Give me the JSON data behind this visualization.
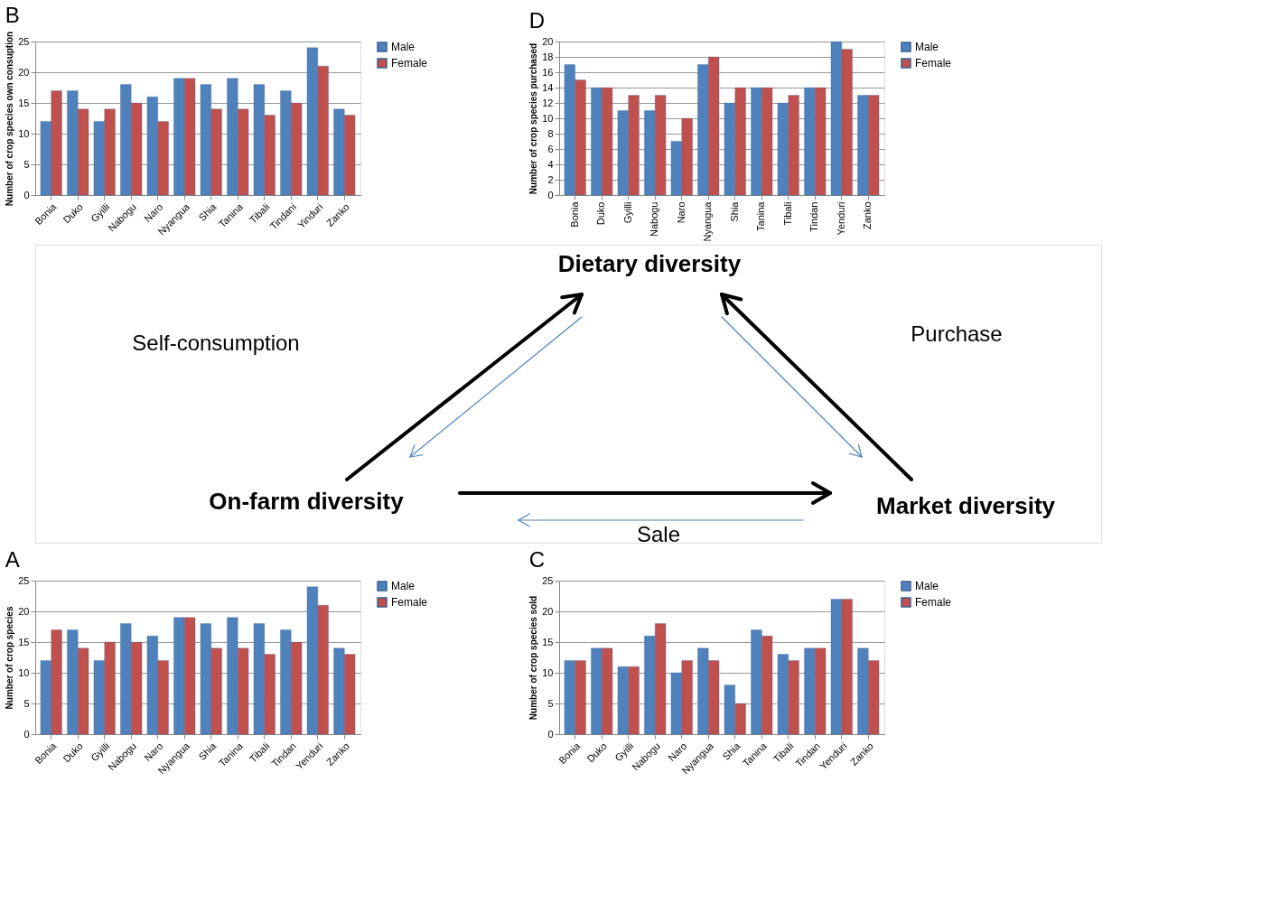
{
  "chart_data": [
    {
      "type": "bar",
      "title": "B",
      "ylabel": "Number of crop species own consuption",
      "categories": [
        "Bonia",
        "Duko",
        "Gyilli",
        "Nabogu",
        "Naro",
        "Nyangua",
        "Shia",
        "Tanina",
        "Tibali",
        "Tindani",
        "Yinduri",
        "Zanko"
      ],
      "series": [
        {
          "name": "Male",
          "color": "#4f81bd",
          "values": [
            12,
            17,
            12,
            18,
            16,
            19,
            18,
            19,
            18,
            17,
            24,
            14
          ]
        },
        {
          "name": "Female",
          "color": "#c0504d",
          "values": [
            17,
            14,
            14,
            15,
            12,
            19,
            14,
            14,
            13,
            15,
            21,
            13
          ]
        }
      ],
      "ylim": [
        0,
        25
      ],
      "yticks": [
        0,
        5,
        10,
        15,
        20,
        25
      ],
      "grid": "y",
      "legend": "right"
    },
    {
      "type": "bar",
      "title": "D",
      "ylabel": "Number of crop species purchased",
      "categories": [
        "Bonia",
        "Duko",
        "Gyilli",
        "Nabogu",
        "Naro",
        "Nyangua",
        "Shia",
        "Tanina",
        "Tibali",
        "Tindan",
        "Yenduri",
        "Zanko"
      ],
      "series": [
        {
          "name": "Male",
          "color": "#4f81bd",
          "values": [
            17,
            14,
            11,
            11,
            7,
            17,
            12,
            14,
            12,
            14,
            20,
            13
          ]
        },
        {
          "name": "Female",
          "color": "#c0504d",
          "values": [
            15,
            14,
            13,
            13,
            10,
            18,
            14,
            14,
            13,
            14,
            19,
            13
          ]
        }
      ],
      "ylim": [
        0,
        20
      ],
      "yticks": [
        0,
        2,
        4,
        6,
        8,
        10,
        12,
        14,
        16,
        18,
        20
      ],
      "grid": "y",
      "legend": "right"
    },
    {
      "type": "other",
      "annotations": [
        "Dietary diversity",
        "Self-consumption",
        "Purchase",
        "On-farm diversity",
        "Market diversity",
        "Sale"
      ]
    },
    {
      "type": "bar",
      "title": "A",
      "ylabel": "Number of crop species",
      "categories": [
        "Bonia",
        "Duko",
        "Gyilli",
        "Nabogu",
        "Naro",
        "Nyangua",
        "Shia",
        "Tanina",
        "Tibali",
        "Tindan",
        "Yenduri",
        "Zanko"
      ],
      "series": [
        {
          "name": "Male",
          "color": "#4f81bd",
          "values": [
            12,
            17,
            12,
            18,
            16,
            19,
            18,
            19,
            18,
            17,
            24,
            14
          ]
        },
        {
          "name": "Female",
          "color": "#c0504d",
          "values": [
            17,
            14,
            15,
            15,
            12,
            19,
            14,
            14,
            13,
            15,
            21,
            13
          ]
        }
      ],
      "ylim": [
        0,
        25
      ],
      "yticks": [
        0,
        5,
        10,
        15,
        20,
        25
      ],
      "grid": "y",
      "legend": "right"
    },
    {
      "type": "bar",
      "title": "C",
      "ylabel": "Number of crop species sold",
      "categories": [
        "Bonia",
        "Duko",
        "Gyilli",
        "Nabogu",
        "Naro",
        "Nyangua",
        "Shia",
        "Tanina",
        "Tibali",
        "Tindan",
        "Yenduri",
        "Zanko"
      ],
      "series": [
        {
          "name": "Male",
          "color": "#4f81bd",
          "values": [
            12,
            14,
            11,
            16,
            10,
            14,
            8,
            17,
            13,
            14,
            22,
            14
          ]
        },
        {
          "name": "Female",
          "color": "#c0504d",
          "values": [
            12,
            14,
            11,
            18,
            12,
            12,
            5,
            16,
            12,
            14,
            22,
            12
          ]
        }
      ],
      "ylim": [
        0,
        25
      ],
      "yticks": [
        0,
        5,
        10,
        15,
        20,
        25
      ],
      "grid": "y",
      "legend": "right"
    }
  ]
}
